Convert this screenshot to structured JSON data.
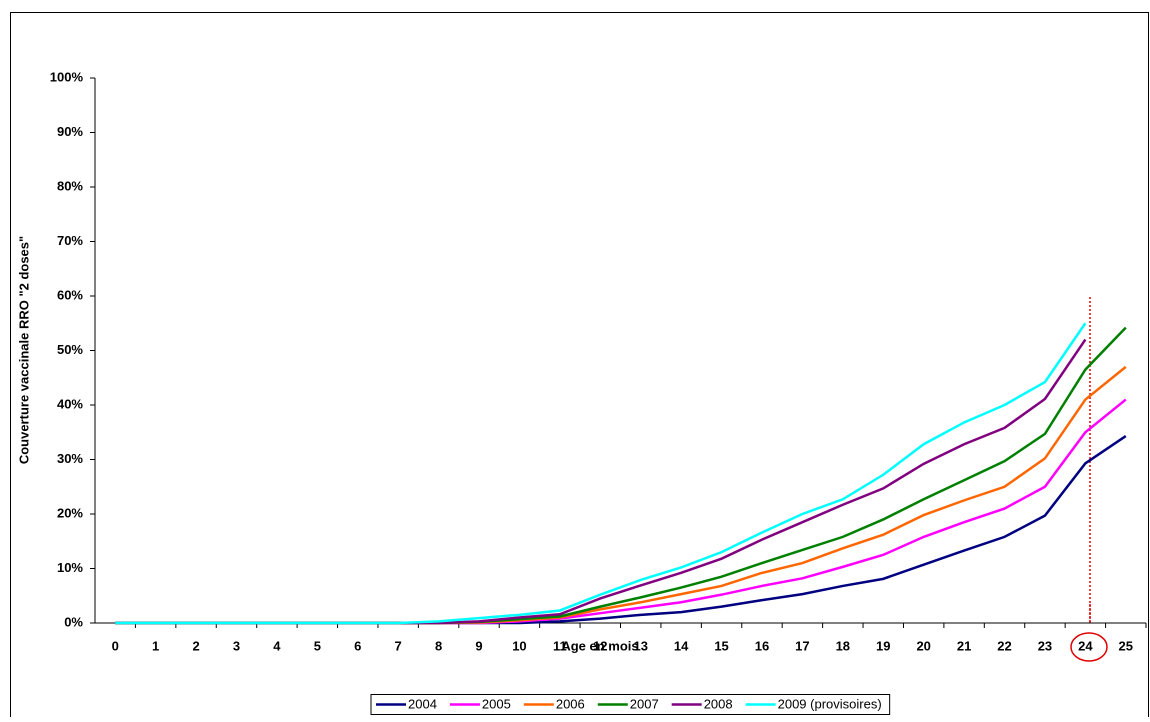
{
  "chart_data": {
    "type": "line",
    "x_label": "Age en mois",
    "y_label": "Couverture vaccinale RRO \"2 doses\"",
    "categories": [
      "0",
      "1",
      "2",
      "3",
      "4",
      "5",
      "6",
      "7",
      "8",
      "9",
      "10",
      "11",
      "12",
      "13",
      "14",
      "15",
      "16",
      "17",
      "18",
      "19",
      "20",
      "21",
      "22",
      "23",
      "24",
      "25"
    ],
    "ylim": [
      0,
      100
    ],
    "yticks": [
      {
        "value": 0,
        "label": "0%"
      },
      {
        "value": 10,
        "label": "10%"
      },
      {
        "value": 20,
        "label": "20%"
      },
      {
        "value": 30,
        "label": "30%"
      },
      {
        "value": 40,
        "label": "40%"
      },
      {
        "value": 50,
        "label": "50%"
      },
      {
        "value": 60,
        "label": "60%"
      },
      {
        "value": 70,
        "label": "70%"
      },
      {
        "value": 80,
        "label": "80%"
      },
      {
        "value": 90,
        "label": "90%"
      },
      {
        "value": 100,
        "label": "100%"
      }
    ],
    "grid": false,
    "legend": "bottom",
    "series": [
      {
        "name": "2004",
        "color": "#000080",
        "values": [
          0,
          0,
          0,
          0,
          0,
          0,
          0,
          0,
          0,
          0,
          0,
          0.3,
          0.8,
          1.5,
          2,
          3,
          4.2,
          5.3,
          6.8,
          8.1,
          10.7,
          13.3,
          15.8,
          19.7,
          29.3,
          34.3
        ]
      },
      {
        "name": "2005",
        "color": "#ff00ff",
        "values": [
          0,
          0,
          0,
          0,
          0,
          0,
          0,
          0,
          0,
          0,
          0.3,
          0.8,
          1.8,
          2.8,
          3.8,
          5.2,
          6.8,
          8.2,
          10.3,
          12.5,
          15.8,
          18.5,
          21,
          25,
          35,
          41
        ]
      },
      {
        "name": "2006",
        "color": "#ff6600",
        "values": [
          0,
          0,
          0,
          0,
          0,
          0,
          0,
          0,
          0,
          0.1,
          0.5,
          1,
          2.5,
          3.8,
          5.3,
          6.8,
          9.2,
          11,
          13.7,
          16.2,
          19.8,
          22.5,
          25,
          30.2,
          41,
          47
        ]
      },
      {
        "name": "2007",
        "color": "#008000",
        "values": [
          0,
          0,
          0,
          0,
          0,
          0,
          0,
          0,
          0,
          0.2,
          0.7,
          1.2,
          3,
          4.7,
          6.5,
          8.5,
          11,
          13.4,
          15.8,
          19,
          22.7,
          26.2,
          29.7,
          34.7,
          46.5,
          54.2
        ]
      },
      {
        "name": "2008",
        "color": "#800080",
        "values": [
          0,
          0,
          0,
          0,
          0,
          0,
          0,
          0,
          0,
          0.3,
          1,
          1.6,
          4.5,
          6.9,
          9.2,
          11.8,
          15.3,
          18.5,
          21.7,
          24.7,
          29.2,
          32.8,
          35.8,
          41.1,
          52,
          null
        ]
      },
      {
        "name": "2009 (provisoires)",
        "color": "#00ffff",
        "values": [
          0,
          0,
          0,
          0,
          0,
          0,
          0,
          0,
          0.3,
          0.9,
          1.5,
          2.3,
          5.2,
          7.9,
          10.2,
          13,
          16.6,
          20,
          22.7,
          27.2,
          32.8,
          36.8,
          40,
          44.2,
          55,
          null
        ]
      }
    ]
  }
}
